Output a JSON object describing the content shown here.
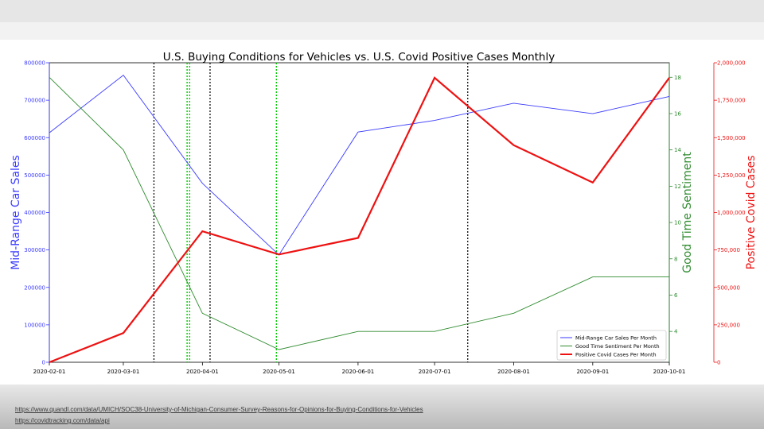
{
  "slide": {
    "links": [
      "https://www.quandl.com/data/UMICH/SOC38-University-of-Michigan-Consumer-Survey-Reasons-for-Opinions-for-Buying-Conditions-for-Vehicles",
      "https://covidtracking.com/data/api"
    ]
  },
  "colors": {
    "sales": "#3b3bff",
    "sentiment": "#2e8b2e",
    "covid": "#ee1111",
    "title": "#000000"
  },
  "chart_data": {
    "type": "line",
    "title": "U.S. Buying Conditions for Vehicles vs. U.S. Covid Positive Cases Monthly",
    "x": [
      "2020-02-01",
      "2020-03-01",
      "2020-04-01",
      "2020-05-01",
      "2020-06-01",
      "2020-07-01",
      "2020-08-01",
      "2020-09-01",
      "2020-10-01"
    ],
    "axes": {
      "left": {
        "label": "Mid-Range Car Sales",
        "ylim": [
          0,
          800000
        ],
        "ticks": [
          0,
          100000,
          200000,
          300000,
          400000,
          500000,
          600000,
          700000,
          800000
        ],
        "tick_labels": [
          "0",
          "100000",
          "200000",
          "300000",
          "400000",
          "500000",
          "600000",
          "700000",
          "800000"
        ]
      },
      "right1": {
        "label": "Good Time Sentiment",
        "ylim": [
          2.3,
          18.8
        ],
        "ticks": [
          4,
          6,
          8,
          10,
          12,
          14,
          16,
          18
        ],
        "tick_labels": [
          "4",
          "6",
          "8",
          "10",
          "12",
          "14",
          "16",
          "18"
        ]
      },
      "right2": {
        "label": "Positive Covid Cases",
        "ylim": [
          0,
          2000000
        ],
        "ticks": [
          0,
          250000,
          500000,
          750000,
          1000000,
          1250000,
          1500000,
          1750000,
          2000000
        ],
        "tick_labels": [
          "0",
          "250,000",
          "500,000",
          "750,000",
          "1,000,000",
          "1,250,000",
          "1,500,000",
          "1,750,000",
          "2,000,000"
        ]
      }
    },
    "series": [
      {
        "name": "Mid-Range Car Sales Per Month",
        "axis": "left",
        "color": "#3b3bff",
        "values": [
          613000,
          767000,
          478000,
          287000,
          615000,
          646000,
          692000,
          664000,
          710000
        ]
      },
      {
        "name": "Good Time Sentiment Per Month",
        "axis": "right1",
        "color": "#2e8b2e",
        "values": [
          18,
          14,
          5,
          3,
          4,
          4,
          5,
          7,
          7
        ]
      },
      {
        "name": "Positive Covid Cases Per Month",
        "axis": "right2",
        "color": "#ee1111",
        "values": [
          0,
          195000,
          875000,
          720000,
          830000,
          1900000,
          1450000,
          1200000,
          1900000
        ]
      }
    ],
    "vlines": [
      {
        "x": "2020-03-13",
        "color": "#000000",
        "style": "dotted"
      },
      {
        "x": "2020-03-26",
        "color": "#00cc00",
        "style": "dotted"
      },
      {
        "x": "2020-03-27",
        "color": "#00cc00",
        "style": "dotted"
      },
      {
        "x": "2020-04-04",
        "color": "#000000",
        "style": "dotted"
      },
      {
        "x": "2020-04-30",
        "color": "#00cc00",
        "style": "dotted"
      },
      {
        "x": "2020-07-14",
        "color": "#000000",
        "style": "dotted"
      }
    ],
    "legend_position": "bottom-right",
    "grid": false
  }
}
